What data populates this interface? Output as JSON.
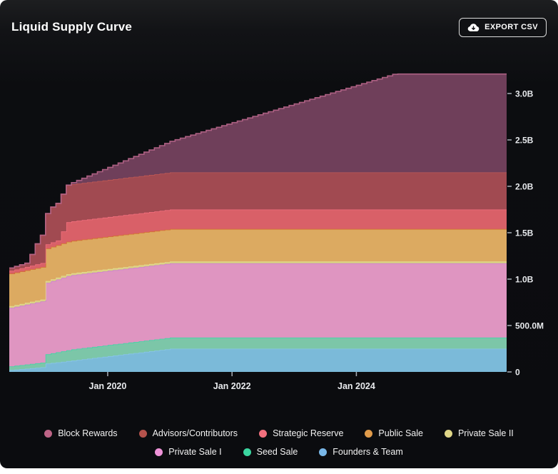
{
  "card": {
    "title": "Liquid Supply Curve",
    "export_button": {
      "label": "EXPORT CSV",
      "icon": "cloud-download-icon"
    }
  },
  "colors": {
    "page_bg": "#ffffff",
    "card_bg": "#0c0d10",
    "title_text": "#ffffff",
    "axis_text": "#e8eaed",
    "tick_mark": "#aab0b8",
    "legend_text": "#f2f2f2",
    "button_border": "#dcdcdc"
  },
  "chart_data": {
    "type": "area",
    "stacked": true,
    "step": "step-after-monthly",
    "title": "Liquid Supply Curve",
    "xlabel": "",
    "ylabel": "",
    "grid": false,
    "legend_position": "bottom",
    "legend_rows": [
      5,
      3
    ],
    "x_unit": "decimal-year",
    "x_range": [
      2018.417,
      2026.417
    ],
    "y_range": [
      0,
      3.28
    ],
    "y_value_unit": "tokens",
    "x_ticks": [
      {
        "label": "Jan 2020",
        "value": 2020
      },
      {
        "label": "Jan 2022",
        "value": 2022
      },
      {
        "label": "Jan 2024",
        "value": 2024
      }
    ],
    "y_ticks": [
      {
        "label": "0",
        "value": 0
      },
      {
        "label": "500.0M",
        "value": 0.5
      },
      {
        "label": "1.0B",
        "value": 1.0
      },
      {
        "label": "1.5B",
        "value": 1.5
      },
      {
        "label": "2.0B",
        "value": 2.0
      },
      {
        "label": "2.5B",
        "value": 2.5
      },
      {
        "label": "3.0B",
        "value": 3.0
      }
    ],
    "series_note": "listed top-to-bottom as stacked and in legend; values in billions of tokens; breakpoints [decimalYear, value] linearly interpolated then stepped monthly",
    "series": [
      {
        "name": "Block Rewards",
        "color": "#bd6486",
        "fill": "#6f3f5a",
        "stroke": "#b26387",
        "breakpoints": [
          [
            2018.417,
            0
          ],
          [
            2019.333,
            0
          ],
          [
            2024.6,
            1.06
          ],
          [
            2026.417,
            1.06
          ]
        ]
      },
      {
        "name": "Advisors/Contributors",
        "color": "#b5524c",
        "fill": "#a14a51",
        "stroke": "#c25a55",
        "breakpoints": [
          [
            2018.417,
            0.03
          ],
          [
            2018.667,
            0.04
          ],
          [
            2018.75,
            0.12
          ],
          [
            2018.833,
            0.22
          ],
          [
            2018.917,
            0.3
          ],
          [
            2019.0,
            0.33
          ],
          [
            2019.083,
            0.38
          ],
          [
            2019.167,
            0.4
          ],
          [
            2026.417,
            0.4
          ]
        ]
      },
      {
        "name": "Strategic Reserve",
        "color": "#f2707e",
        "fill": "#d96068",
        "stroke": "#f2707e",
        "breakpoints": [
          [
            2018.417,
            0.03
          ],
          [
            2019.167,
            0.05
          ],
          [
            2019.25,
            0.13
          ],
          [
            2019.333,
            0.21
          ],
          [
            2026.417,
            0.21
          ]
        ]
      },
      {
        "name": "Public Sale",
        "color": "#e09b4a",
        "fill": "#dcaa61",
        "stroke": "#d2702e",
        "breakpoints": [
          [
            2018.417,
            0.35
          ],
          [
            2026.417,
            0.35
          ]
        ]
      },
      {
        "name": "Private Sale II",
        "color": "#dfd687",
        "fill": "#d9cf82",
        "stroke": "#e5dc92",
        "breakpoints": [
          [
            2018.417,
            0.02
          ],
          [
            2026.417,
            0.02
          ]
        ]
      },
      {
        "name": "Private Sale I",
        "color": "#ee93d8",
        "fill": "#df95c1",
        "stroke": "#cb7fd4",
        "breakpoints": [
          [
            2018.417,
            0.63
          ],
          [
            2018.917,
            0.66
          ],
          [
            2019.0,
            0.77
          ],
          [
            2019.333,
            0.8
          ],
          [
            2026.417,
            0.8
          ]
        ]
      },
      {
        "name": "Seed Sale",
        "color": "#3bd6a0",
        "fill": "#7cc6a8",
        "stroke": "#3ed8a8",
        "breakpoints": [
          [
            2018.417,
            0.04
          ],
          [
            2018.917,
            0.05
          ],
          [
            2019.0,
            0.1
          ],
          [
            2019.417,
            0.12
          ],
          [
            2026.417,
            0.12
          ]
        ]
      },
      {
        "name": "Founders & Team",
        "color": "#79b7e8",
        "fill": "#7bbad9",
        "stroke": "#8ac6ea",
        "breakpoints": [
          [
            2018.417,
            0.02
          ],
          [
            2018.917,
            0.05
          ],
          [
            2019.0,
            0.09
          ],
          [
            2021.0,
            0.25
          ],
          [
            2026.417,
            0.25
          ]
        ]
      }
    ]
  }
}
